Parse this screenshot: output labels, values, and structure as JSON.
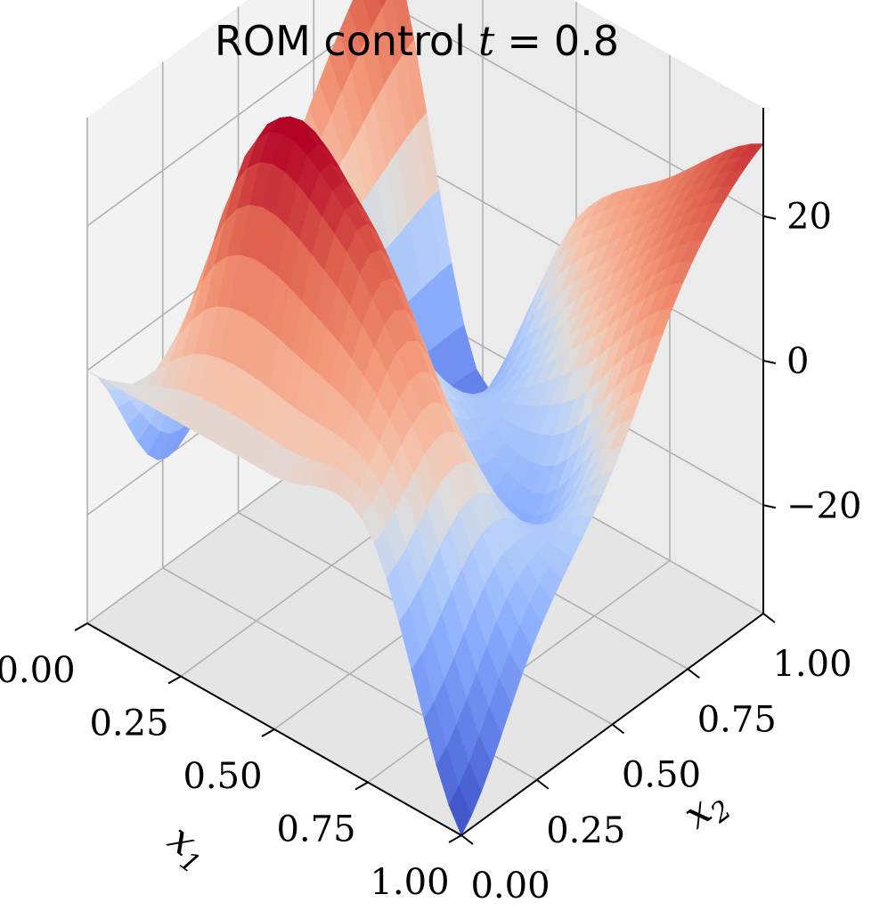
{
  "chart_data": {
    "type": "surface",
    "title": {
      "prefix": "ROM control",
      "variable": "t",
      "operator": "=",
      "value": "0.8"
    },
    "colormap": "coolwarm",
    "colors": {
      "cold": "#3b4cc0",
      "neutral": "#dddddd",
      "hot": "#b40426",
      "pane_back": "#ebebeb",
      "pane_side": "#f2f2f2",
      "pane_floor": "#e5e5e5",
      "grid": "#b0b0b0"
    },
    "grid": true,
    "x1": {
      "label": "x",
      "subscript": "1",
      "range": [
        0,
        1
      ],
      "ticks": [
        0,
        0.25,
        0.5,
        0.75,
        1
      ],
      "tick_labels": [
        "0.00",
        "0.25",
        "0.50",
        "0.75",
        "1.00"
      ]
    },
    "x2": {
      "label": "x",
      "subscript": "2",
      "range": [
        0,
        1
      ],
      "ticks": [
        0,
        0.25,
        0.5,
        0.75,
        1
      ],
      "tick_labels": [
        "0.00",
        "0.25",
        "0.50",
        "0.75",
        "1.00"
      ]
    },
    "z": {
      "range": [
        -35,
        35
      ],
      "ticks": [
        -20,
        0,
        20
      ],
      "tick_labels": [
        "−20",
        "0",
        "20"
      ]
    },
    "surface_samples": {
      "x1": [
        0,
        0.25,
        0.5,
        0.75,
        1
      ],
      "x2": [
        0,
        0.25,
        0.5,
        0.75,
        1
      ],
      "values": [
        [
          0,
          -20,
          -8,
          15,
          30
        ],
        [
          0,
          32,
          13,
          -20,
          -25
        ],
        [
          0,
          30,
          0,
          -10,
          5
        ],
        [
          0,
          8,
          -15,
          5,
          18
        ],
        [
          -35,
          -15,
          0,
          20,
          30
        ]
      ]
    }
  }
}
